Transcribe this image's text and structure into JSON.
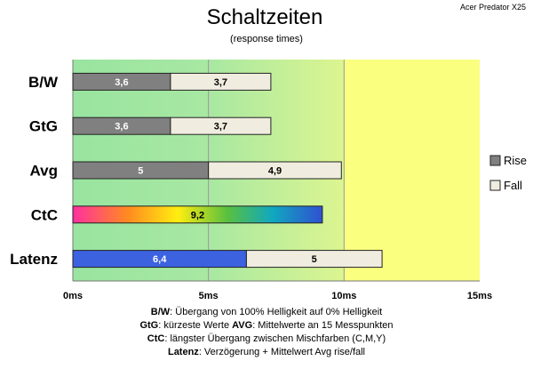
{
  "chart_data": {
    "type": "bar",
    "orientation": "horizontal",
    "stacked": true,
    "title": "Schaltzeiten",
    "subtitle": "(response times)",
    "corner_label": "Acer Predator X25",
    "categories": [
      "B/W",
      "GtG",
      "Avg",
      "CtC",
      "Latenz"
    ],
    "series": [
      {
        "name": "Rise",
        "values": [
          3.6,
          3.6,
          5,
          9.2,
          6.4
        ],
        "color": "#808080"
      },
      {
        "name": "Fall",
        "values": [
          3.7,
          3.7,
          4.9,
          null,
          5
        ],
        "color": "#f0ede0"
      }
    ],
    "value_labels": {
      "rise": [
        "3,6",
        "3,6",
        "5",
        "9,2",
        "6,4"
      ],
      "fall": [
        "3,7",
        "3,7",
        "4,9",
        "",
        "5"
      ]
    },
    "special_colors": {
      "ctc": "rainbow gradient",
      "latenz_rise": "#3c62e0"
    },
    "x_ticks": [
      "0ms",
      "5ms",
      "10ms",
      "15ms"
    ],
    "xlim": [
      0,
      15
    ],
    "background_zones": [
      {
        "from": 0,
        "to": 10,
        "color": "green gradient"
      },
      {
        "from": 10,
        "to": 15,
        "color": "#faff80"
      }
    ],
    "gridlines": "vertical at 5ms intervals",
    "legend_position": "right",
    "footnotes": [
      [
        {
          "b": "B/W",
          "t": ":  Übergang von 100% Helligkeit auf 0% Helligkeit"
        }
      ],
      [
        {
          "b": "GtG",
          "t": ": kürzeste  Werte        "
        },
        {
          "b": "AVG",
          "t": ": Mittelwerte  an 15 Messpunkten"
        }
      ],
      [
        {
          "b": "CtC",
          "t": ": längster Übergang zwischen Mischfarben (C,M,Y)"
        }
      ],
      [
        {
          "b": "Latenz",
          "t": ": Verzögerung  + Mittelwert Avg rise/fall"
        }
      ]
    ]
  }
}
